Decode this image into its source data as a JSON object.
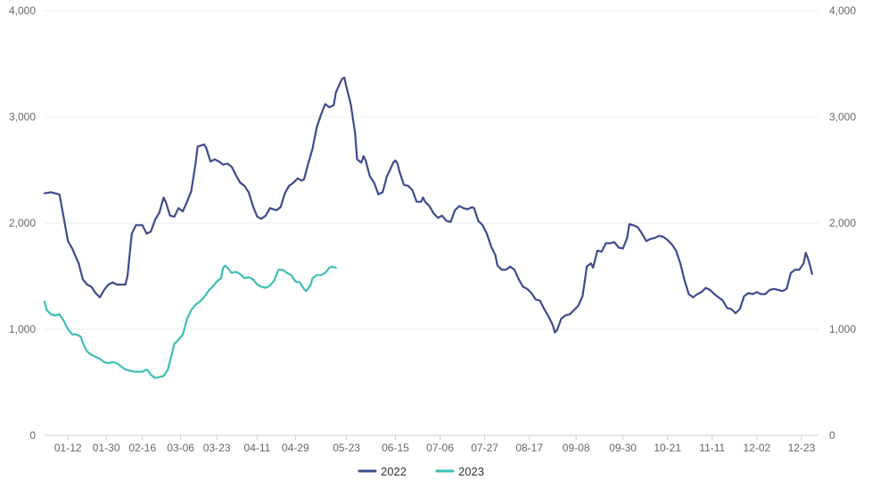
{
  "chart_data": {
    "type": "line",
    "title": "",
    "xlabel": "",
    "ylabel": "",
    "ylim": [
      0,
      4000
    ],
    "y_ticks": [
      0,
      1000,
      2000,
      3000,
      4000
    ],
    "y_tick_labels": [
      "0",
      "1,000",
      "2,000",
      "3,000",
      "4,000"
    ],
    "y_axis_right_mirror": true,
    "grid": true,
    "legend_position": "bottom-center",
    "x_tick_labels": [
      "01-12",
      "01-30",
      "02-16",
      "03-06",
      "03-23",
      "04-11",
      "04-29",
      "05-23",
      "06-15",
      "07-06",
      "07-27",
      "08-17",
      "09-08",
      "09-30",
      "10-21",
      "11-11",
      "12-02",
      "12-23"
    ],
    "x_tick_days": [
      12,
      30,
      47,
      65,
      82,
      101,
      119,
      143,
      166,
      187,
      208,
      229,
      251,
      273,
      294,
      315,
      336,
      357
    ],
    "x_range_days": [
      1,
      365
    ],
    "series": [
      {
        "name": "2022",
        "color": "#3f4b8c",
        "points": [
          [
            1,
            2280
          ],
          [
            4,
            2290
          ],
          [
            8,
            2270
          ],
          [
            10,
            2050
          ],
          [
            12,
            1830
          ],
          [
            14,
            1760
          ],
          [
            17,
            1620
          ],
          [
            19,
            1470
          ],
          [
            21,
            1420
          ],
          [
            23,
            1400
          ],
          [
            25,
            1340
          ],
          [
            27,
            1300
          ],
          [
            29,
            1370
          ],
          [
            31,
            1420
          ],
          [
            33,
            1440
          ],
          [
            35,
            1420
          ],
          [
            37,
            1420
          ],
          [
            39,
            1420
          ],
          [
            40,
            1500
          ],
          [
            41,
            1700
          ],
          [
            42,
            1900
          ],
          [
            44,
            1980
          ],
          [
            47,
            1980
          ],
          [
            49,
            1900
          ],
          [
            51,
            1920
          ],
          [
            53,
            2030
          ],
          [
            55,
            2100
          ],
          [
            57,
            2240
          ],
          [
            58,
            2200
          ],
          [
            60,
            2070
          ],
          [
            62,
            2060
          ],
          [
            64,
            2140
          ],
          [
            66,
            2110
          ],
          [
            68,
            2200
          ],
          [
            70,
            2300
          ],
          [
            72,
            2560
          ],
          [
            73,
            2720
          ],
          [
            76,
            2740
          ],
          [
            77,
            2710
          ],
          [
            79,
            2580
          ],
          [
            81,
            2600
          ],
          [
            83,
            2580
          ],
          [
            85,
            2550
          ],
          [
            87,
            2560
          ],
          [
            89,
            2530
          ],
          [
            91,
            2450
          ],
          [
            93,
            2380
          ],
          [
            95,
            2350
          ],
          [
            97,
            2290
          ],
          [
            99,
            2160
          ],
          [
            101,
            2060
          ],
          [
            103,
            2040
          ],
          [
            105,
            2070
          ],
          [
            107,
            2140
          ],
          [
            110,
            2120
          ],
          [
            112,
            2150
          ],
          [
            114,
            2280
          ],
          [
            116,
            2350
          ],
          [
            118,
            2380
          ],
          [
            120,
            2420
          ],
          [
            122,
            2400
          ],
          [
            123,
            2410
          ],
          [
            125,
            2560
          ],
          [
            127,
            2700
          ],
          [
            129,
            2900
          ],
          [
            131,
            3020
          ],
          [
            133,
            3120
          ],
          [
            135,
            3090
          ],
          [
            137,
            3110
          ],
          [
            138,
            3230
          ],
          [
            140,
            3320
          ],
          [
            141,
            3360
          ],
          [
            142,
            3370
          ],
          [
            143,
            3280
          ],
          [
            145,
            3120
          ],
          [
            147,
            2850
          ],
          [
            148,
            2600
          ],
          [
            150,
            2570
          ],
          [
            151,
            2630
          ],
          [
            152,
            2590
          ],
          [
            154,
            2440
          ],
          [
            156,
            2380
          ],
          [
            158,
            2270
          ],
          [
            160,
            2290
          ],
          [
            162,
            2440
          ],
          [
            163,
            2480
          ],
          [
            165,
            2570
          ],
          [
            166,
            2590
          ],
          [
            167,
            2560
          ],
          [
            168,
            2480
          ],
          [
            170,
            2360
          ],
          [
            172,
            2350
          ],
          [
            174,
            2310
          ],
          [
            176,
            2200
          ],
          [
            178,
            2200
          ],
          [
            179,
            2240
          ],
          [
            180,
            2200
          ],
          [
            182,
            2160
          ],
          [
            184,
            2090
          ],
          [
            186,
            2050
          ],
          [
            188,
            2070
          ],
          [
            190,
            2020
          ],
          [
            192,
            2010
          ],
          [
            194,
            2120
          ],
          [
            196,
            2160
          ],
          [
            198,
            2140
          ],
          [
            200,
            2130
          ],
          [
            202,
            2150
          ],
          [
            203,
            2140
          ],
          [
            205,
            2020
          ],
          [
            207,
            1980
          ],
          [
            209,
            1900
          ],
          [
            211,
            1780
          ],
          [
            213,
            1700
          ],
          [
            214,
            1600
          ],
          [
            216,
            1560
          ],
          [
            218,
            1560
          ],
          [
            220,
            1590
          ],
          [
            222,
            1560
          ],
          [
            224,
            1470
          ],
          [
            226,
            1400
          ],
          [
            228,
            1380
          ],
          [
            230,
            1340
          ],
          [
            232,
            1280
          ],
          [
            234,
            1270
          ],
          [
            236,
            1190
          ],
          [
            238,
            1120
          ],
          [
            240,
            1040
          ],
          [
            241,
            970
          ],
          [
            242,
            990
          ],
          [
            244,
            1100
          ],
          [
            246,
            1130
          ],
          [
            248,
            1140
          ],
          [
            250,
            1180
          ],
          [
            252,
            1220
          ],
          [
            254,
            1310
          ],
          [
            255,
            1440
          ],
          [
            256,
            1590
          ],
          [
            258,
            1620
          ],
          [
            259,
            1580
          ],
          [
            261,
            1740
          ],
          [
            263,
            1730
          ],
          [
            265,
            1810
          ],
          [
            267,
            1810
          ],
          [
            269,
            1820
          ],
          [
            271,
            1770
          ],
          [
            273,
            1760
          ],
          [
            275,
            1860
          ],
          [
            276,
            1990
          ],
          [
            278,
            1980
          ],
          [
            280,
            1960
          ],
          [
            282,
            1900
          ],
          [
            284,
            1830
          ],
          [
            286,
            1850
          ],
          [
            288,
            1860
          ],
          [
            290,
            1880
          ],
          [
            292,
            1870
          ],
          [
            294,
            1840
          ],
          [
            296,
            1800
          ],
          [
            298,
            1740
          ],
          [
            300,
            1620
          ],
          [
            302,
            1460
          ],
          [
            304,
            1330
          ],
          [
            306,
            1300
          ],
          [
            308,
            1330
          ],
          [
            310,
            1350
          ],
          [
            312,
            1390
          ],
          [
            314,
            1370
          ],
          [
            316,
            1330
          ],
          [
            318,
            1300
          ],
          [
            320,
            1270
          ],
          [
            322,
            1200
          ],
          [
            324,
            1190
          ],
          [
            326,
            1150
          ],
          [
            328,
            1190
          ],
          [
            330,
            1310
          ],
          [
            332,
            1340
          ],
          [
            334,
            1330
          ],
          [
            336,
            1350
          ],
          [
            338,
            1330
          ],
          [
            340,
            1330
          ],
          [
            342,
            1370
          ],
          [
            344,
            1380
          ],
          [
            346,
            1370
          ],
          [
            348,
            1360
          ],
          [
            350,
            1380
          ],
          [
            352,
            1530
          ],
          [
            354,
            1560
          ],
          [
            356,
            1560
          ],
          [
            358,
            1620
          ],
          [
            359,
            1720
          ],
          [
            360,
            1670
          ],
          [
            361,
            1600
          ],
          [
            362,
            1520
          ]
        ]
      },
      {
        "name": "2023",
        "color": "#3dbfb4",
        "points": [
          [
            1,
            1260
          ],
          [
            2,
            1180
          ],
          [
            4,
            1140
          ],
          [
            6,
            1130
          ],
          [
            8,
            1140
          ],
          [
            10,
            1080
          ],
          [
            12,
            1000
          ],
          [
            14,
            950
          ],
          [
            16,
            950
          ],
          [
            18,
            930
          ],
          [
            19,
            870
          ],
          [
            21,
            790
          ],
          [
            23,
            760
          ],
          [
            25,
            740
          ],
          [
            27,
            720
          ],
          [
            29,
            690
          ],
          [
            31,
            680
          ],
          [
            33,
            690
          ],
          [
            35,
            680
          ],
          [
            37,
            650
          ],
          [
            39,
            620
          ],
          [
            41,
            610
          ],
          [
            43,
            600
          ],
          [
            45,
            600
          ],
          [
            47,
            600
          ],
          [
            49,
            620
          ],
          [
            50,
            600
          ],
          [
            51,
            570
          ],
          [
            53,
            540
          ],
          [
            55,
            550
          ],
          [
            57,
            560
          ],
          [
            59,
            620
          ],
          [
            60,
            700
          ],
          [
            61,
            780
          ],
          [
            62,
            860
          ],
          [
            64,
            900
          ],
          [
            66,
            950
          ],
          [
            67,
            1020
          ],
          [
            68,
            1100
          ],
          [
            70,
            1180
          ],
          [
            72,
            1230
          ],
          [
            74,
            1260
          ],
          [
            76,
            1300
          ],
          [
            78,
            1360
          ],
          [
            80,
            1400
          ],
          [
            82,
            1450
          ],
          [
            84,
            1480
          ],
          [
            85,
            1580
          ],
          [
            86,
            1600
          ],
          [
            87,
            1580
          ],
          [
            89,
            1530
          ],
          [
            91,
            1540
          ],
          [
            93,
            1520
          ],
          [
            95,
            1480
          ],
          [
            97,
            1490
          ],
          [
            99,
            1470
          ],
          [
            101,
            1420
          ],
          [
            103,
            1400
          ],
          [
            105,
            1390
          ],
          [
            107,
            1410
          ],
          [
            109,
            1460
          ],
          [
            111,
            1560
          ],
          [
            113,
            1560
          ],
          [
            115,
            1530
          ],
          [
            117,
            1510
          ],
          [
            119,
            1450
          ],
          [
            121,
            1440
          ],
          [
            123,
            1380
          ],
          [
            124,
            1360
          ],
          [
            126,
            1410
          ],
          [
            127,
            1480
          ],
          [
            129,
            1510
          ],
          [
            131,
            1510
          ],
          [
            133,
            1530
          ],
          [
            135,
            1580
          ],
          [
            136,
            1590
          ],
          [
            138,
            1580
          ]
        ]
      }
    ]
  }
}
